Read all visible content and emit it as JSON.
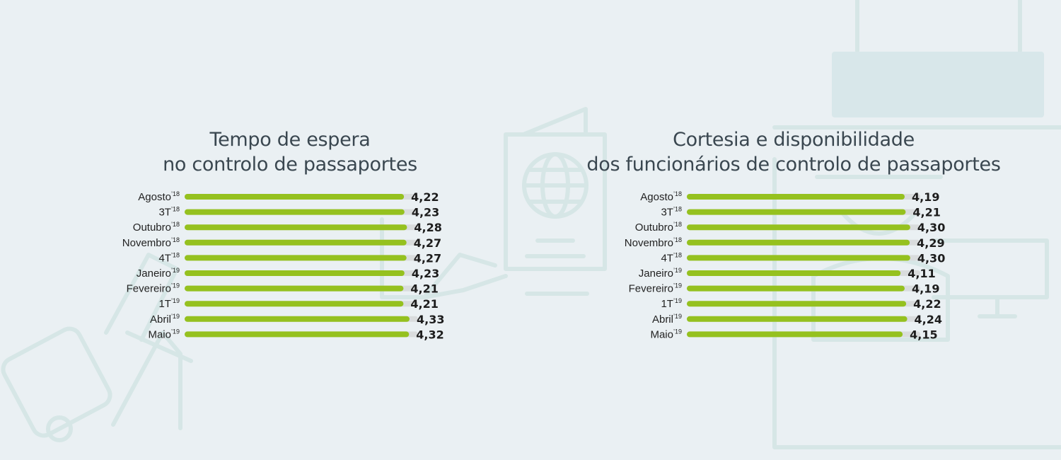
{
  "colors": {
    "bar": "#95c11f",
    "track": "#d9dcdd",
    "text": "#1d1d1d",
    "decor": "#d6e6e6"
  },
  "chart_data": [
    {
      "type": "bar",
      "orientation": "horizontal",
      "title_lines": [
        "Tempo de espera",
        "no controlo de passaportes"
      ],
      "categories": [
        {
          "name": "Agosto",
          "sup": "’18"
        },
        {
          "name": "3T",
          "sup": "’18"
        },
        {
          "name": "Outubro",
          "sup": "’18"
        },
        {
          "name": "Novembro",
          "sup": "’18"
        },
        {
          "name": "4T",
          "sup": "’18"
        },
        {
          "name": "Janeiro",
          "sup": "’19"
        },
        {
          "name": "Fevereiro",
          "sup": "’19"
        },
        {
          "name": "1T",
          "sup": "’19"
        },
        {
          "name": "Abril",
          "sup": "’19"
        },
        {
          "name": "Maio",
          "sup": "’19"
        }
      ],
      "values": [
        4.22,
        4.23,
        4.28,
        4.27,
        4.27,
        4.23,
        4.21,
        4.21,
        4.33,
        4.32
      ],
      "value_labels": [
        "4,22",
        "4,23",
        "4,28",
        "4,27",
        "4,27",
        "4,23",
        "4,21",
        "4,21",
        "4,33",
        "4,32"
      ],
      "xlim": [
        0,
        5
      ],
      "grid": false
    },
    {
      "type": "bar",
      "orientation": "horizontal",
      "title_lines": [
        "Cortesia e disponibilidade",
        "dos funcionários de controlo de passaportes"
      ],
      "categories": [
        {
          "name": "Agosto",
          "sup": "’18"
        },
        {
          "name": "3T",
          "sup": "’18"
        },
        {
          "name": "Outubro",
          "sup": "’18"
        },
        {
          "name": "Novembro",
          "sup": "’18"
        },
        {
          "name": "4T",
          "sup": "’18"
        },
        {
          "name": "Janeiro",
          "sup": "’19"
        },
        {
          "name": "Fevereiro",
          "sup": "’19"
        },
        {
          "name": "1T",
          "sup": "’19"
        },
        {
          "name": "Abril",
          "sup": "’19"
        },
        {
          "name": "Maio",
          "sup": "’19"
        }
      ],
      "values": [
        4.19,
        4.21,
        4.3,
        4.29,
        4.3,
        4.11,
        4.19,
        4.22,
        4.24,
        4.15
      ],
      "value_labels": [
        "4,19",
        "4,21",
        "4,30",
        "4,29",
        "4,30",
        "4,11",
        "4,19",
        "4,22",
        "4,24",
        "4,15"
      ],
      "xlim": [
        0,
        5
      ],
      "grid": false
    }
  ]
}
